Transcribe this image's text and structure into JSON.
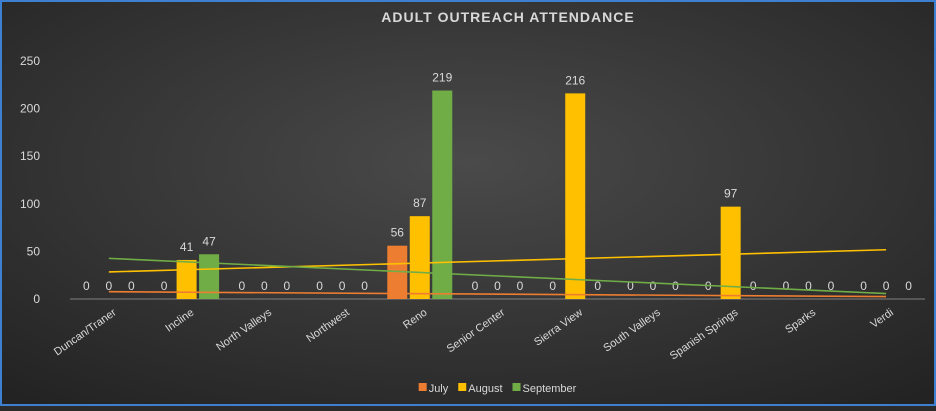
{
  "chart_data": {
    "type": "bar",
    "title": "ADULT OUTREACH ATTENDANCE",
    "categories": [
      "Duncan/Traner",
      "Incline",
      "North Valleys",
      "Northwest",
      "Reno",
      "Senior Center",
      "Sierra View",
      "South Valleys",
      "Spanish Springs",
      "Sparks",
      "Verdi"
    ],
    "series": [
      {
        "name": "July",
        "color": "#ed7d31",
        "values": [
          0,
          0,
          0,
          0,
          56,
          0,
          0,
          0,
          0,
          0,
          0
        ]
      },
      {
        "name": "August",
        "color": "#ffc000",
        "values": [
          0,
          41,
          0,
          0,
          87,
          0,
          216,
          0,
          97,
          0,
          0
        ]
      },
      {
        "name": "September",
        "color": "#70ad47",
        "values": [
          0,
          47,
          0,
          0,
          219,
          0,
          0,
          0,
          0,
          0,
          0
        ]
      }
    ],
    "ylim": [
      0,
      250
    ],
    "yticks": [
      0,
      50,
      100,
      150,
      200,
      250
    ],
    "grid": false,
    "trendline": "linear",
    "legend": "bottom"
  }
}
